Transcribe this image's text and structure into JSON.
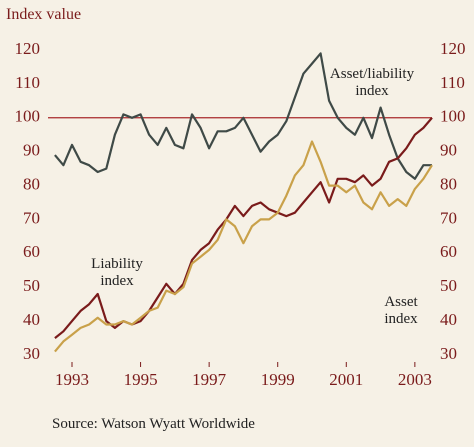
{
  "chart_data": {
    "type": "line",
    "title": "Index value",
    "source": "Source: Watson Wyatt Worldwide",
    "x": [
      1992.5,
      1992.75,
      1993,
      1993.25,
      1993.5,
      1993.75,
      1994,
      1994.25,
      1994.5,
      1994.75,
      1995,
      1995.25,
      1995.5,
      1995.75,
      1996,
      1996.25,
      1996.5,
      1996.75,
      1997,
      1997.25,
      1997.5,
      1997.75,
      1998,
      1998.25,
      1998.5,
      1998.75,
      1999,
      1999.25,
      1999.5,
      1999.75,
      2000,
      2000.25,
      2000.5,
      2000.75,
      2001,
      2001.25,
      2001.5,
      2001.75,
      2002,
      2002.25,
      2002.5,
      2002.75,
      2003,
      2003.25,
      2003.5
    ],
    "series": [
      {
        "name": "Asset/liability index",
        "color": "#3f4a47",
        "values": [
          89,
          86,
          92,
          87,
          86,
          84,
          85,
          95,
          101,
          100,
          101,
          95,
          92,
          97,
          92,
          91,
          101,
          97,
          91,
          96,
          96,
          97,
          100,
          95,
          90,
          93,
          95,
          99,
          106,
          113,
          116,
          119,
          105,
          100,
          97,
          95,
          100,
          94,
          103,
          95,
          88,
          84,
          82,
          86,
          86
        ]
      },
      {
        "name": "Liability index",
        "color": "#7a1b1b",
        "values": [
          35,
          37,
          40,
          43,
          45,
          48,
          40,
          38,
          40,
          39,
          40,
          43,
          47,
          51,
          48,
          51,
          58,
          61,
          63,
          67,
          70,
          74,
          71,
          74,
          75,
          73,
          72,
          71,
          72,
          75,
          78,
          81,
          75,
          82,
          82,
          81,
          83,
          80,
          82,
          87,
          88,
          91,
          95,
          97,
          100
        ]
      },
      {
        "name": "Asset index",
        "color": "#c9a14a",
        "values": [
          31,
          34,
          36,
          38,
          39,
          41,
          39,
          39,
          40,
          39,
          41,
          43,
          44,
          49,
          48,
          50,
          57,
          59,
          61,
          64,
          70,
          68,
          63,
          68,
          70,
          70,
          72,
          77,
          83,
          86,
          93,
          87,
          80,
          80,
          78,
          80,
          75,
          73,
          78,
          74,
          76,
          74,
          79,
          82,
          86
        ]
      }
    ],
    "reference_line": {
      "value": 100,
      "color": "#a8282a"
    },
    "xlim": [
      1992.3,
      2003.5
    ],
    "xticks": [
      1993,
      1995,
      1997,
      1999,
      2001,
      2003
    ],
    "ylim": [
      30,
      120
    ],
    "yticks": [
      30,
      40,
      50,
      60,
      70,
      80,
      90,
      100,
      110,
      120
    ]
  }
}
